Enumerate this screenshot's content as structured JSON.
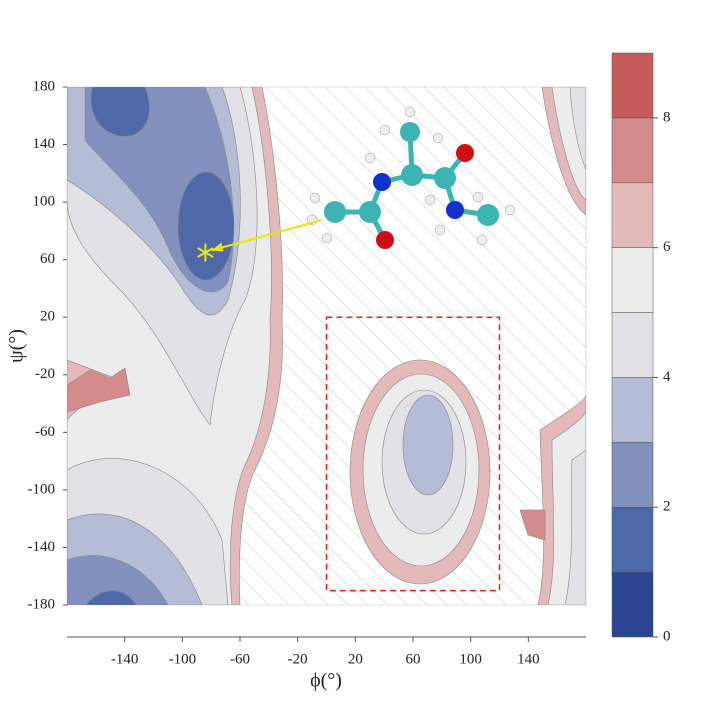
{
  "chart_data": {
    "type": "contour",
    "xlabel": "ϕ(°)",
    "ylabel": "ψ(°)",
    "xlim": [
      -180,
      180
    ],
    "ylim": [
      -180,
      180
    ],
    "xticks": [
      -140,
      -100,
      -60,
      -20,
      20,
      60,
      100,
      140
    ],
    "yticks": [
      180,
      140,
      100,
      60,
      20,
      -20,
      -60,
      -100,
      -140,
      -180
    ],
    "levels": [
      0,
      1,
      2,
      3,
      4,
      5,
      6,
      7,
      8,
      9
    ],
    "level_colors": [
      "#2b4591",
      "#4f69a8",
      "#8190bc",
      "#b4bcd6",
      "#e1e1e6",
      "#ececec",
      "#e4b9b9",
      "#d48b8b",
      "#c45a5a"
    ],
    "colorbar_ticks": [
      0,
      2,
      4,
      6,
      8
    ],
    "marker": {
      "x": -84,
      "y": 65,
      "color": "#e8e800"
    },
    "highlight_box": {
      "x": [
        0,
        120
      ],
      "y": [
        -170,
        20
      ],
      "color": "#e82020"
    }
  }
}
